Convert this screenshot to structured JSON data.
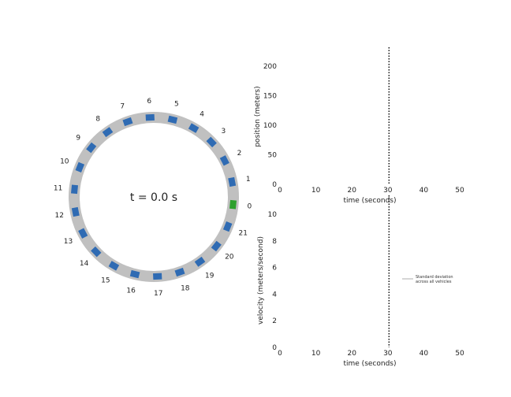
{
  "chart_data": [
    {
      "type": "diagram",
      "title": "",
      "time_label": "t = 0.0 s",
      "vehicles": {
        "ids": [
          "0",
          "1",
          "2",
          "3",
          "4",
          "5",
          "6",
          "7",
          "8",
          "9",
          "10",
          "11",
          "12",
          "13",
          "14",
          "15",
          "16",
          "17",
          "18",
          "19",
          "20",
          "21"
        ],
        "highlighted": "0",
        "colors": {
          "ring": "#c0c0c0",
          "vehicle": "#2f6bb3",
          "highlight": "#2ca02c"
        }
      }
    },
    {
      "type": "line",
      "title": "",
      "xlabel": "time (seconds)",
      "ylabel": "position (meters)",
      "xlim": [
        0,
        55
      ],
      "ylim": [
        0,
        230
      ],
      "xticks": [
        "0",
        "10",
        "20",
        "30",
        "40",
        "50"
      ],
      "yticks": [
        "0",
        "50",
        "100",
        "150",
        "200"
      ],
      "current_time_marker": 30,
      "series": []
    },
    {
      "type": "line",
      "title": "",
      "xlabel": "time (seconds)",
      "ylabel": "velocity (meters/second)",
      "xlim": [
        0,
        55
      ],
      "ylim": [
        0,
        10.5
      ],
      "xticks": [
        "0",
        "10",
        "20",
        "30",
        "40",
        "50"
      ],
      "yticks": [
        "0",
        "2",
        "4",
        "6",
        "8",
        "10"
      ],
      "current_time_marker": 30,
      "legend": {
        "placement": "right",
        "entries": [
          "Standard deviation",
          "across all vehicles"
        ]
      },
      "series": []
    }
  ]
}
